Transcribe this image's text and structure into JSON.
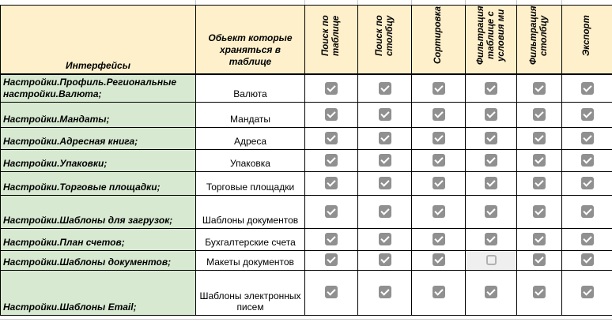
{
  "table": {
    "headers": {
      "interfaces": "Интерфейсы",
      "object": "Обьект которые храняться в таблице"
    },
    "feature_columns": [
      "Поиск по таблице",
      "Поиск по столбцу",
      "Сортировка",
      "Фильтрация таблице с условия ми",
      "Фильтрация столбцу",
      "Экспорт"
    ],
    "rows": [
      {
        "interface": "Настройки.Профиль.Региональные настройки.Валюта;",
        "object": "Валюта",
        "checks": [
          true,
          true,
          true,
          true,
          true,
          true
        ]
      },
      {
        "interface": "Настройки.Мандаты;",
        "object": "Мандаты",
        "checks": [
          true,
          true,
          true,
          true,
          true,
          true
        ]
      },
      {
        "interface": "Настройки.Адресная книга;",
        "object": "Адреса",
        "checks": [
          true,
          true,
          true,
          true,
          true,
          true
        ]
      },
      {
        "interface": "Настройки.Упаковки;",
        "object": "Упаковка",
        "checks": [
          true,
          true,
          true,
          true,
          true,
          true
        ]
      },
      {
        "interface": "Настройки.Торговые площадки;",
        "object": "Торговые площадки",
        "checks": [
          true,
          true,
          true,
          true,
          true,
          true
        ]
      },
      {
        "interface": "Настройки.Шаблоны для загрузок;",
        "object": "Шаблоны документов",
        "checks": [
          true,
          true,
          true,
          true,
          true,
          true
        ]
      },
      {
        "interface": "Настройки.План счетов;",
        "object": "Бухгалтерские счета",
        "checks": [
          true,
          true,
          true,
          true,
          true,
          true
        ]
      },
      {
        "interface": "Настройки.Шаблоны документов;",
        "object": "Макеты документов",
        "checks": [
          true,
          true,
          true,
          false,
          true,
          true
        ]
      },
      {
        "interface": "Настройки.Шаблоны Email;",
        "object": "Шаблоны электронных писем",
        "checks": [
          true,
          true,
          true,
          true,
          true,
          true
        ]
      }
    ]
  },
  "colors": {
    "header_bg": "#fef0cb",
    "row_bg": "#d7e9d1",
    "checkbox": "#909090",
    "unchecked_cell_bg": "#efefef"
  }
}
